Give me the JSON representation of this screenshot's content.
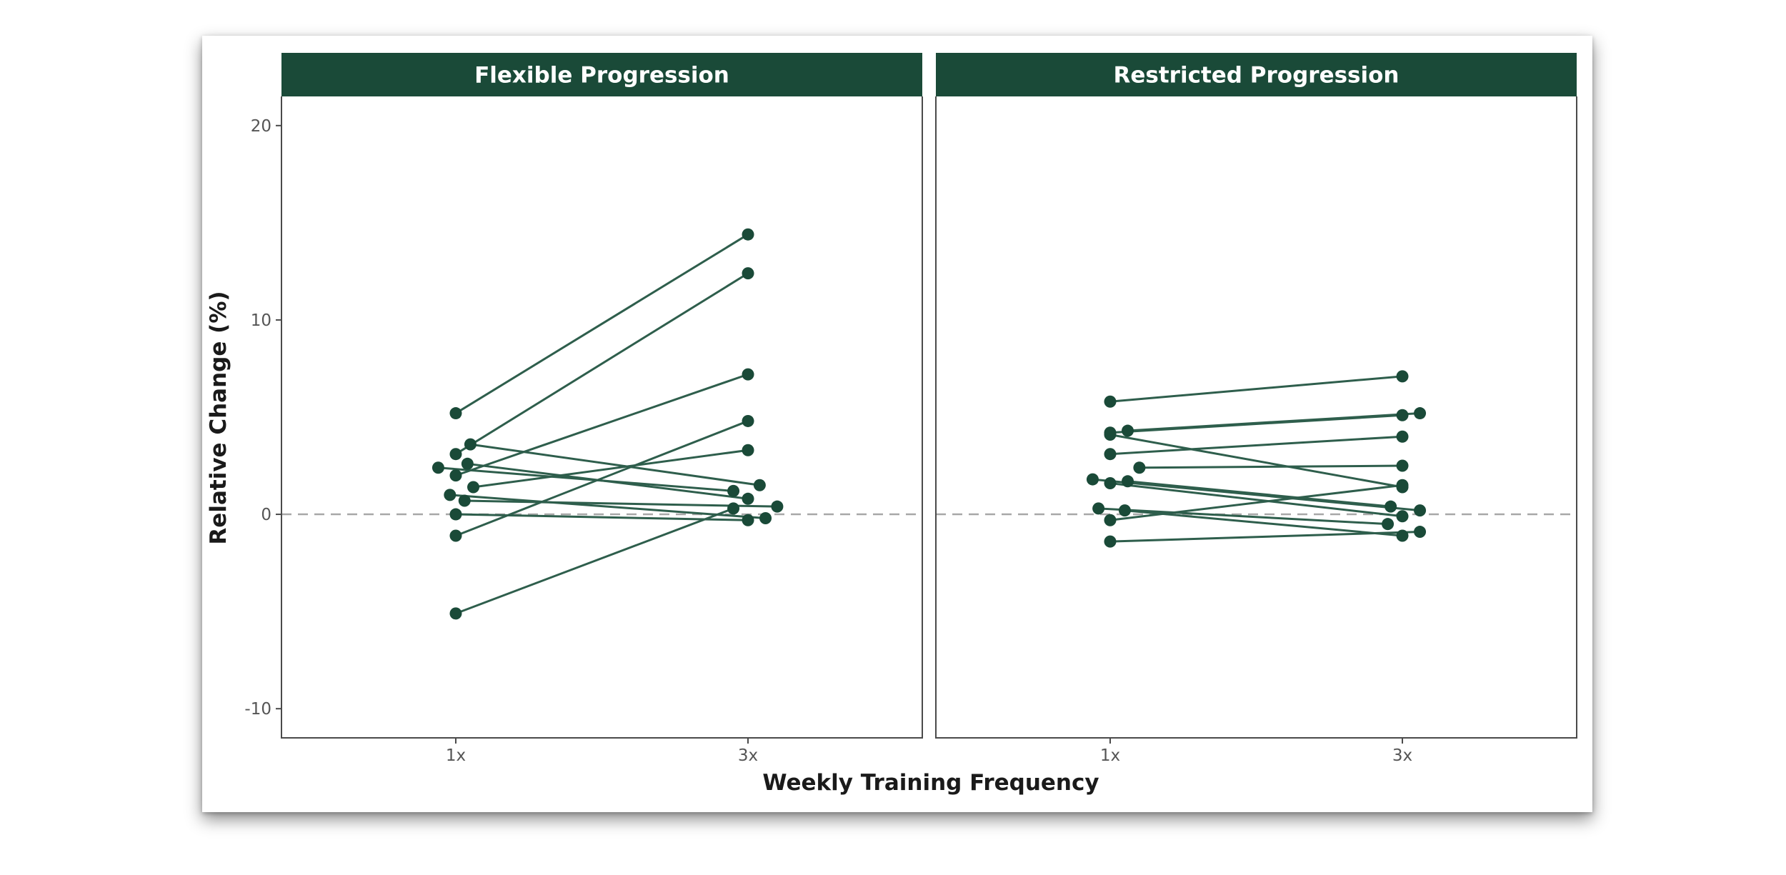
{
  "chart_data": {
    "type": "line",
    "xlabel": "Weekly Training Frequency",
    "ylabel": "Relative Change (%)",
    "categories": [
      "1x",
      "3x"
    ],
    "ylim": [
      -11.5,
      21.5
    ],
    "yticks": [
      -10,
      0,
      10,
      20
    ],
    "reference_line": 0,
    "colors": {
      "strip": "#1a4a38",
      "line": "#2e5e4c",
      "point": "#1a4a38",
      "reference": "#a8a8a8",
      "panel_border": "#4a4a4a"
    },
    "panels": [
      {
        "title": "Flexible Progression",
        "pairs": [
          {
            "x_offsets": [
              0,
              0
            ],
            "values": [
              5.2,
              14.4
            ]
          },
          {
            "x_offsets": [
              0,
              0
            ],
            "values": [
              3.1,
              12.4
            ]
          },
          {
            "x_offsets": [
              0,
              0
            ],
            "values": [
              2.0,
              7.2
            ]
          },
          {
            "x_offsets": [
              0,
              0
            ],
            "values": [
              -1.1,
              4.8
            ]
          },
          {
            "x_offsets": [
              0.06,
              0
            ],
            "values": [
              1.4,
              3.3
            ]
          },
          {
            "x_offsets": [
              0.05,
              0.04
            ],
            "values": [
              3.6,
              1.5
            ]
          },
          {
            "x_offsets": [
              -0.06,
              -0.05
            ],
            "values": [
              2.4,
              1.2
            ]
          },
          {
            "x_offsets": [
              0.04,
              0
            ],
            "values": [
              2.6,
              0.8
            ]
          },
          {
            "x_offsets": [
              0.03,
              0.1
            ],
            "values": [
              0.7,
              0.4
            ]
          },
          {
            "x_offsets": [
              0,
              0
            ],
            "values": [
              0.0,
              -0.3
            ]
          },
          {
            "x_offsets": [
              -0.02,
              0.06
            ],
            "values": [
              1.0,
              -0.2
            ]
          },
          {
            "x_offsets": [
              0,
              -0.05
            ],
            "values": [
              -5.1,
              0.3
            ]
          }
        ]
      },
      {
        "title": "Restricted Progression",
        "pairs": [
          {
            "x_offsets": [
              0,
              0
            ],
            "values": [
              5.8,
              7.1
            ]
          },
          {
            "x_offsets": [
              0,
              0
            ],
            "values": [
              4.2,
              5.1
            ]
          },
          {
            "x_offsets": [
              0.06,
              0.06
            ],
            "values": [
              4.3,
              5.2
            ]
          },
          {
            "x_offsets": [
              0,
              0
            ],
            "values": [
              3.1,
              4.0
            ]
          },
          {
            "x_offsets": [
              0.1,
              0
            ],
            "values": [
              2.4,
              2.5
            ]
          },
          {
            "x_offsets": [
              0,
              0
            ],
            "values": [
              4.1,
              1.4
            ]
          },
          {
            "x_offsets": [
              0.06,
              -0.04
            ],
            "values": [
              1.7,
              0.4
            ]
          },
          {
            "x_offsets": [
              0,
              0
            ],
            "values": [
              1.6,
              -0.1
            ]
          },
          {
            "x_offsets": [
              -0.06,
              0.06
            ],
            "values": [
              1.8,
              0.2
            ]
          },
          {
            "x_offsets": [
              0,
              0
            ],
            "values": [
              -0.3,
              1.5
            ]
          },
          {
            "x_offsets": [
              -0.04,
              -0.05
            ],
            "values": [
              0.3,
              -0.5
            ]
          },
          {
            "x_offsets": [
              0.05,
              0
            ],
            "values": [
              0.2,
              -1.1
            ]
          },
          {
            "x_offsets": [
              0,
              0.06
            ],
            "values": [
              -1.4,
              -0.9
            ]
          }
        ]
      }
    ]
  }
}
